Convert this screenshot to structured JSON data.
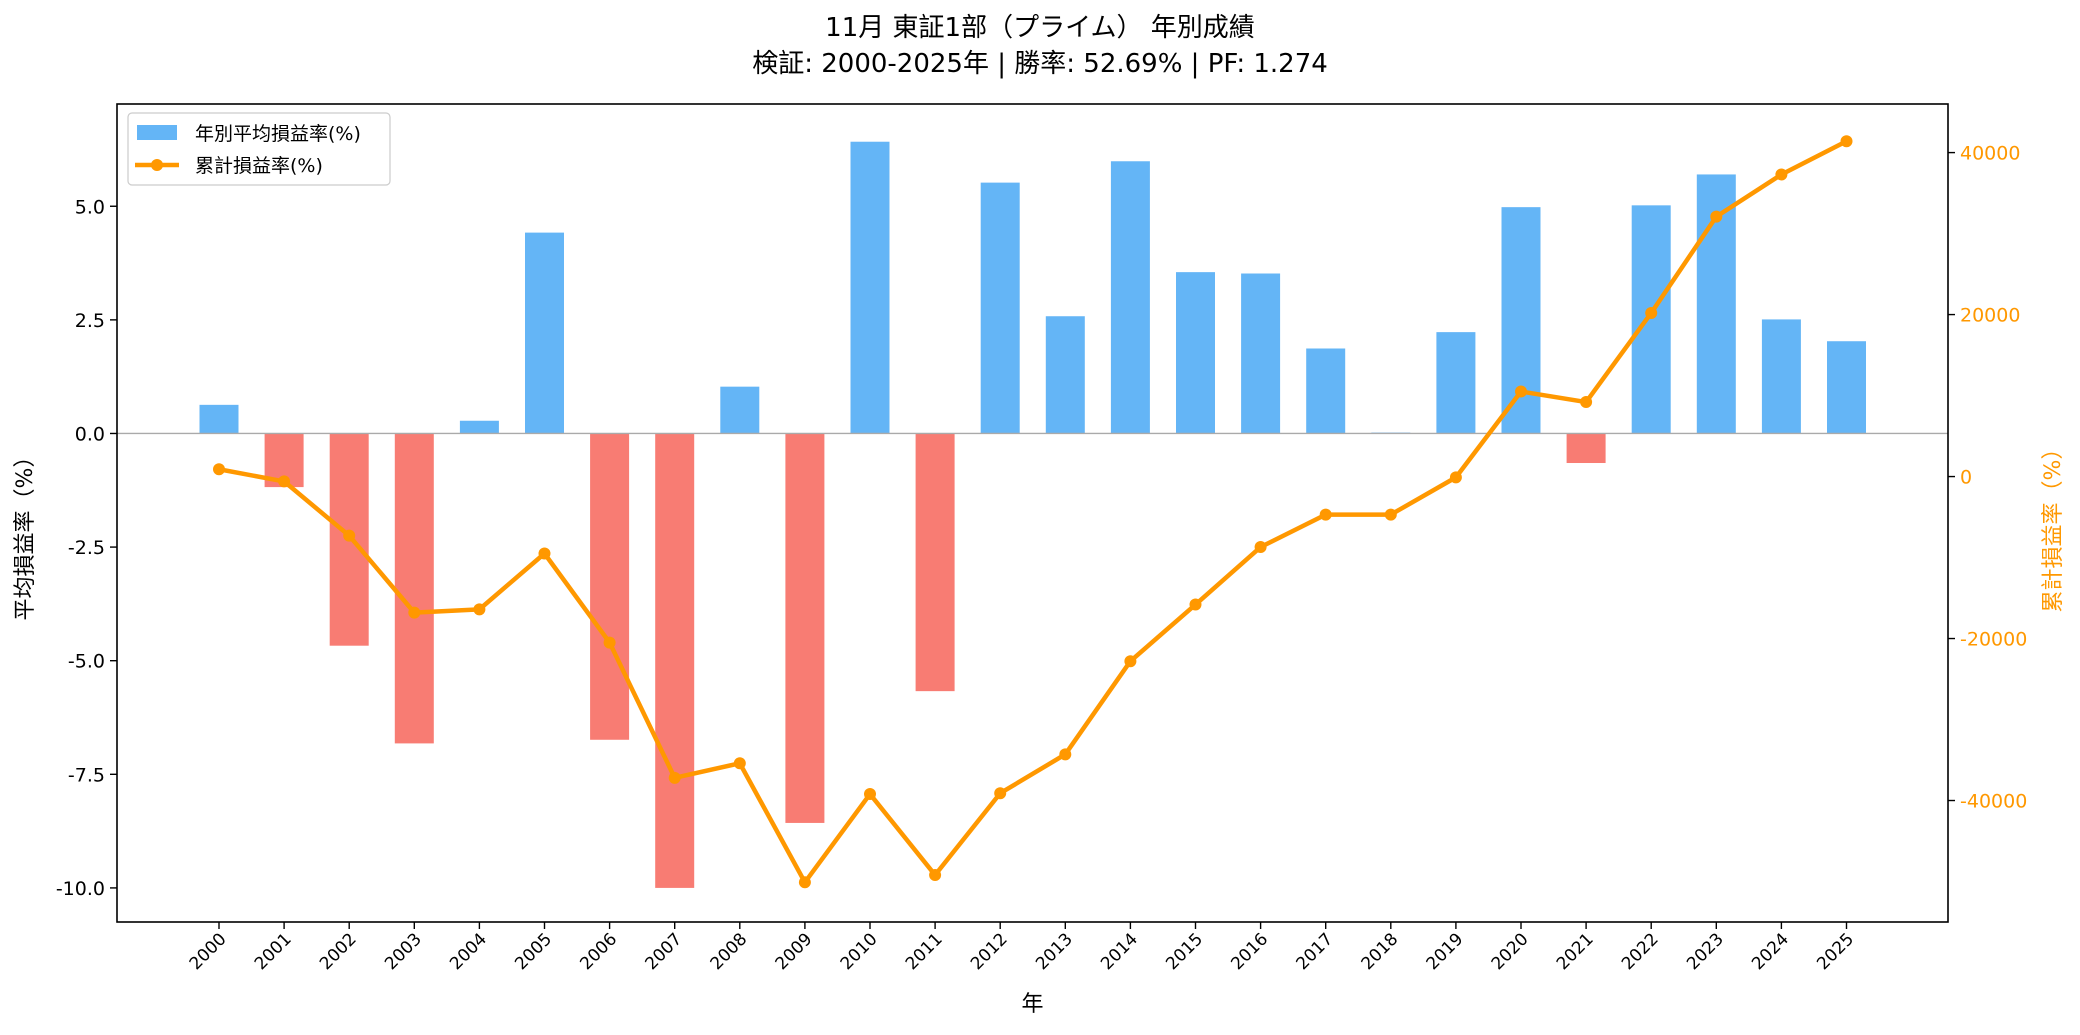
{
  "chart_data": {
    "type": "bar",
    "title_line1": "11月 東証1部（プライム） 年別成績",
    "title_line2": "検証: 2000-2025年 | 勝率: 52.69% | PF: 1.274",
    "xlabel": "年",
    "ylabel_left": "平均損益率（%）",
    "ylabel_right": "累計損益率（%）",
    "categories": [
      "2000",
      "2001",
      "2002",
      "2003",
      "2004",
      "2005",
      "2006",
      "2007",
      "2008",
      "2009",
      "2010",
      "2011",
      "2012",
      "2013",
      "2014",
      "2015",
      "2016",
      "2017",
      "2018",
      "2019",
      "2020",
      "2021",
      "2022",
      "2023",
      "2024",
      "2025"
    ],
    "left_axis": {
      "ylim": [
        -10.75,
        7.25
      ],
      "ticks": [
        -10.0,
        -7.5,
        -5.0,
        -2.5,
        0.0,
        2.5,
        5.0
      ],
      "tick_labels": [
        "-10.0",
        "-7.5",
        "-5.0",
        "-2.5",
        "0.0",
        "2.5",
        "5.0"
      ]
    },
    "right_axis": {
      "ylim": [
        -55000,
        46000
      ],
      "ticks": [
        -40000,
        -20000,
        0,
        20000,
        40000
      ],
      "tick_labels": [
        "-40000",
        "-20000",
        "0",
        "20000",
        "40000"
      ]
    },
    "grid": false,
    "legend_placement": "top-left",
    "series": [
      {
        "name": "年別平均損益率(%)",
        "type": "bar",
        "axis": "left",
        "values": [
          0.63,
          -1.18,
          -4.67,
          -6.82,
          0.28,
          4.42,
          -6.74,
          -10.0,
          1.03,
          -8.57,
          6.42,
          -5.67,
          5.52,
          2.58,
          5.99,
          3.55,
          3.52,
          1.87,
          0.02,
          2.23,
          4.98,
          -0.65,
          5.02,
          5.7,
          2.51,
          2.03
        ]
      },
      {
        "name": "累計損益率(%)",
        "type": "line",
        "axis": "right",
        "values": [
          900,
          -600,
          -7300,
          -16800,
          -16400,
          -9500,
          -20500,
          -37200,
          -35400,
          -50100,
          -39200,
          -49200,
          -39100,
          -34300,
          -22800,
          -15800,
          -8700,
          -4700,
          -4700,
          -100,
          10500,
          9200,
          20200,
          32100,
          37300,
          41400
        ]
      }
    ],
    "colors": {
      "positive_bar": "#64b5f6",
      "negative_bar": "#f87c73",
      "line": "#ff9800",
      "zero_line": "#aaaaaa",
      "axis": "#000000",
      "right_axis_label": "#ff9800"
    }
  }
}
